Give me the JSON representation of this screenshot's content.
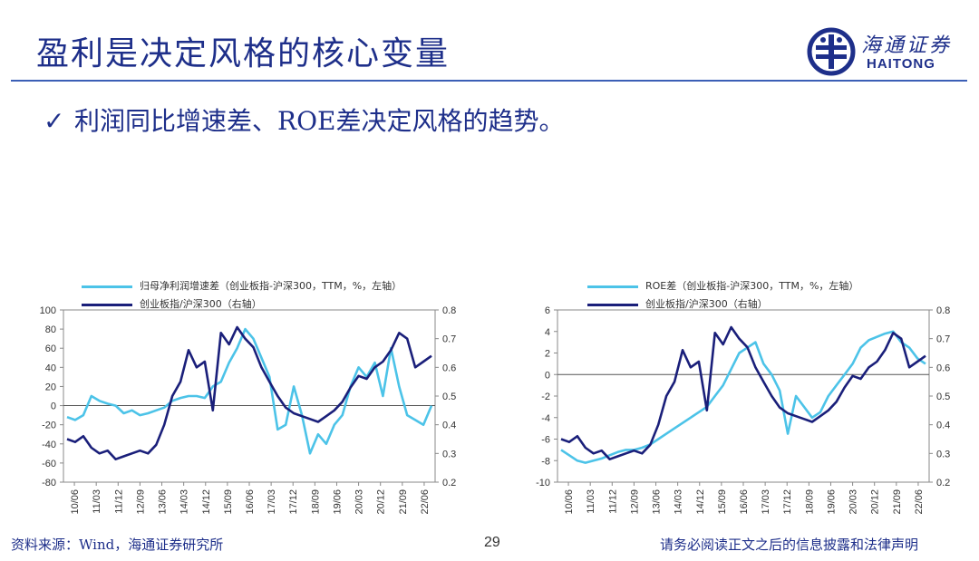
{
  "slide": {
    "title": "盈利是决定风格的核心变量",
    "bullet_text": "利润同比增速差、ROE差决定风格的趋势。",
    "logo": {
      "cn": "海通证券",
      "en": "HAITONG"
    },
    "footer_source": "资料来源：Wind，海通证券研究所",
    "page_number": "29",
    "footer_disclaimer": "请务必阅读正文之后的信息披露和法律声明"
  },
  "colors": {
    "light_series": "#4cc3e8",
    "dark_series": "#1a1f7a",
    "title": "#1e2f8a"
  },
  "chart_data": [
    {
      "type": "line",
      "legend": [
        "归母净利润增速差（创业板指-沪深300，TTM，%，左轴）",
        "创业板指/沪深300（右轴）"
      ],
      "x_ticks": [
        "10/06",
        "11/03",
        "11/12",
        "12/09",
        "13/06",
        "14/03",
        "14/12",
        "15/09",
        "16/06",
        "17/03",
        "17/12",
        "18/09",
        "19/06",
        "20/03",
        "20/12",
        "21/09",
        "22/06"
      ],
      "y_left": {
        "min": -80,
        "max": 100,
        "ticks": [
          "100",
          "80",
          "60",
          "40",
          "20",
          "0",
          "-20",
          "-40",
          "-60",
          "-80"
        ]
      },
      "y_right": {
        "min": 0.2,
        "max": 0.8,
        "ticks": [
          "0.8",
          "0.7",
          "0.6",
          "0.5",
          "0.4",
          "0.3",
          "0.2"
        ]
      },
      "series": [
        {
          "name": "归母净利润增速差",
          "axis": "left",
          "values": [
            -12,
            -15,
            -10,
            10,
            5,
            2,
            0,
            -8,
            -5,
            -10,
            -8,
            -5,
            -2,
            5,
            8,
            10,
            10,
            8,
            20,
            25,
            45,
            60,
            80,
            70,
            50,
            30,
            -25,
            -20,
            20,
            -10,
            -50,
            -30,
            -40,
            -20,
            -10,
            20,
            40,
            30,
            45,
            10,
            60,
            20,
            -10,
            -15,
            -20,
            0
          ]
        },
        {
          "name": "创业板指/沪深300",
          "axis": "right",
          "values": [
            0.35,
            0.34,
            0.36,
            0.32,
            0.3,
            0.31,
            0.28,
            0.29,
            0.3,
            0.31,
            0.3,
            0.33,
            0.4,
            0.5,
            0.55,
            0.66,
            0.6,
            0.62,
            0.45,
            0.72,
            0.68,
            0.74,
            0.7,
            0.67,
            0.6,
            0.55,
            0.5,
            0.46,
            0.44,
            0.43,
            0.42,
            0.41,
            0.43,
            0.45,
            0.48,
            0.53,
            0.57,
            0.56,
            0.6,
            0.62,
            0.66,
            0.72,
            0.7,
            0.6,
            0.62,
            0.64
          ]
        }
      ]
    },
    {
      "type": "line",
      "legend": [
        "ROE差（创业板指-沪深300，TTM，%，左轴）",
        "创业板指/沪深300（右轴）"
      ],
      "x_ticks": [
        "10/06",
        "11/03",
        "11/12",
        "12/09",
        "13/06",
        "14/03",
        "14/12",
        "15/09",
        "16/06",
        "17/03",
        "17/12",
        "18/09",
        "19/06",
        "20/03",
        "20/12",
        "21/09",
        "22/06"
      ],
      "y_left": {
        "min": -10,
        "max": 6,
        "ticks": [
          "6",
          "4",
          "2",
          "0",
          "-2",
          "-4",
          "-6",
          "-8",
          "-10"
        ]
      },
      "y_right": {
        "min": 0.2,
        "max": 0.8,
        "ticks": [
          "0.8",
          "0.7",
          "0.6",
          "0.5",
          "0.4",
          "0.3",
          "0.2"
        ]
      },
      "series": [
        {
          "name": "ROE差",
          "axis": "left",
          "values": [
            -7,
            -7.5,
            -8,
            -8.2,
            -8,
            -7.8,
            -7.5,
            -7.2,
            -7,
            -7,
            -6.8,
            -6.5,
            -6,
            -5.5,
            -5,
            -4.5,
            -4,
            -3.5,
            -3,
            -2,
            -1,
            0.5,
            2,
            2.5,
            3,
            1,
            0,
            -1.5,
            -5.5,
            -2,
            -3,
            -4,
            -3.5,
            -2,
            -1,
            0,
            1,
            2.5,
            3.2,
            3.5,
            3.8,
            4,
            3,
            2.5,
            1.5,
            1
          ]
        },
        {
          "name": "创业板指/沪深300",
          "axis": "right",
          "values": [
            0.35,
            0.34,
            0.36,
            0.32,
            0.3,
            0.31,
            0.28,
            0.29,
            0.3,
            0.31,
            0.3,
            0.33,
            0.4,
            0.5,
            0.55,
            0.66,
            0.6,
            0.62,
            0.45,
            0.72,
            0.68,
            0.74,
            0.7,
            0.67,
            0.6,
            0.55,
            0.5,
            0.46,
            0.44,
            0.43,
            0.42,
            0.41,
            0.43,
            0.45,
            0.48,
            0.53,
            0.57,
            0.56,
            0.6,
            0.62,
            0.66,
            0.72,
            0.7,
            0.6,
            0.62,
            0.64
          ]
        }
      ]
    }
  ]
}
